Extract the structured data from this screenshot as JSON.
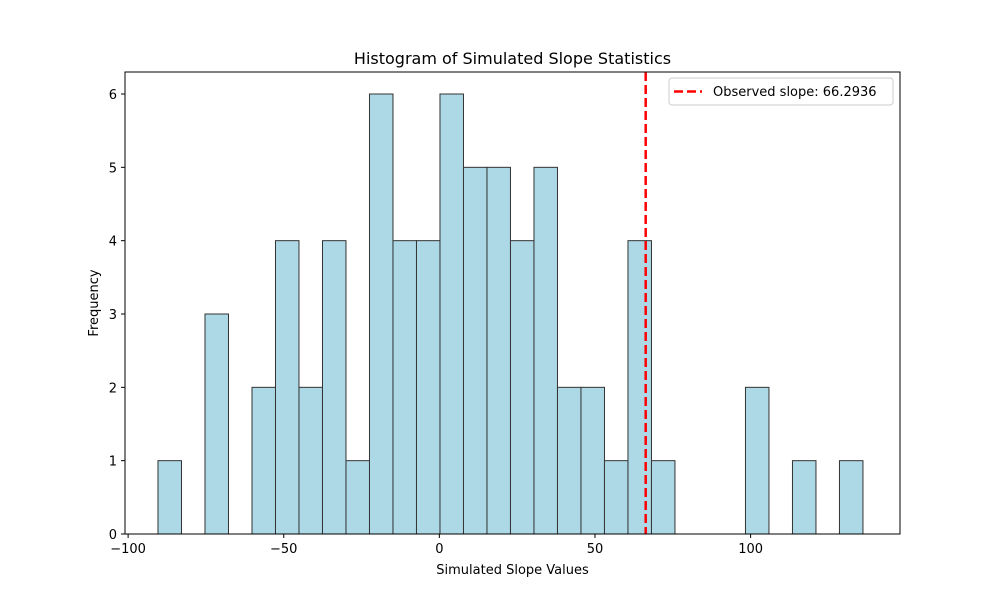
{
  "chart_data": {
    "type": "bar",
    "title": "Histogram of Simulated Slope Statistics",
    "xlabel": "Simulated Slope Values",
    "ylabel": "Frequency",
    "xlim": [
      -101,
      148
    ],
    "ylim": [
      0,
      6.3
    ],
    "xticks": [
      -100,
      -50,
      0,
      50,
      100
    ],
    "xtick_labels": [
      "−100",
      "−50",
      "0",
      "50",
      "100"
    ],
    "yticks": [
      0,
      1,
      2,
      3,
      4,
      5,
      6
    ],
    "ytick_labels": [
      "0",
      "1",
      "2",
      "3",
      "4",
      "5",
      "6"
    ],
    "bin_start": -90.4,
    "bin_width": 7.55,
    "counts": [
      1,
      0,
      3,
      0,
      2,
      4,
      2,
      4,
      1,
      6,
      4,
      4,
      6,
      5,
      5,
      4,
      5,
      2,
      2,
      1,
      4,
      1,
      0,
      0,
      0,
      2,
      0,
      1,
      0,
      1
    ],
    "bar_color": "#add8e6",
    "bar_edge_color": "#333333",
    "observed_slope": 66.2936,
    "observed_line_color": "#ff0000",
    "legend": {
      "location": "upper right",
      "entries": [
        "Observed slope: 66.2936"
      ]
    }
  }
}
